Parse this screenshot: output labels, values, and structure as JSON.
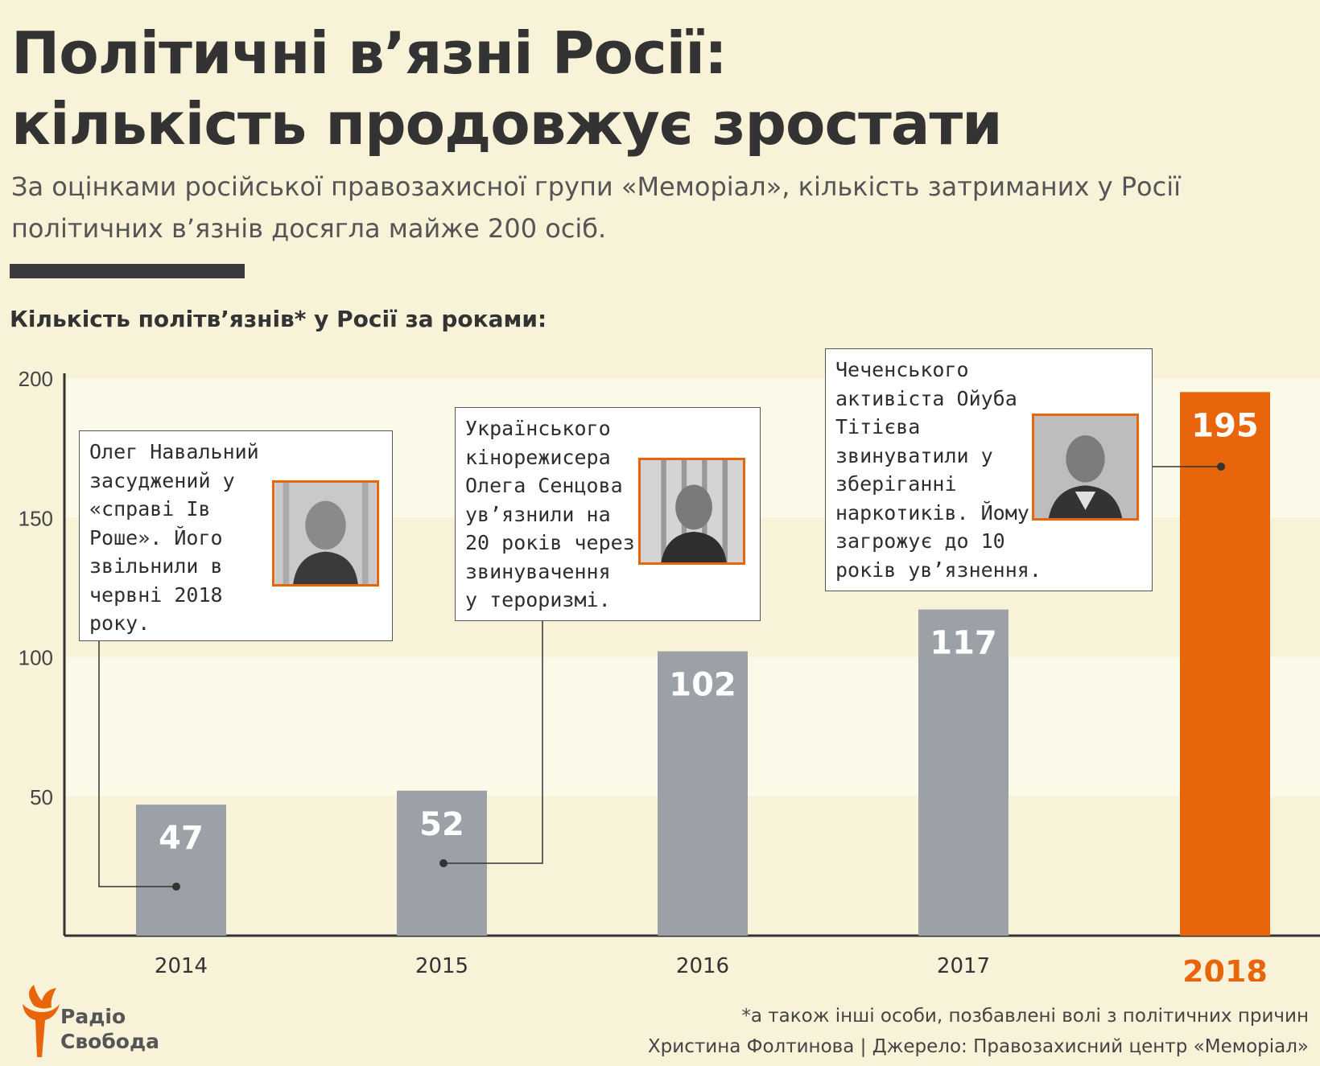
{
  "title_line1": "Політичні в’язні Росії:",
  "title_line2": "кількість продовжує зростати",
  "subtitle_line1": "За оцінками російської правозахисної групи «Меморіал», кількість затриманих у Росії",
  "subtitle_line2": "політичних в’язнів досягла майже 200 осіб.",
  "chart_data": {
    "type": "bar",
    "title": "Кількість політв’язнів* у Росії за роками:",
    "categories": [
      "2014",
      "2015",
      "2016",
      "2017",
      "2018"
    ],
    "values": [
      47,
      52,
      102,
      117,
      195
    ],
    "ylim": [
      0,
      200
    ],
    "yticks": [
      50,
      100,
      150,
      200
    ],
    "bar_color": "#9ba1a6",
    "highlight_color": "#e8650c",
    "highlight_index": 4,
    "grid_band_color": "#fbf9e8"
  },
  "callouts": [
    {
      "lines": [
        "Олег Навальний",
        "засуджений у",
        "«справі Ів",
        "Роше». Його",
        "звільнили в",
        "червні 2018",
        "року."
      ],
      "bar_index": 0,
      "photo": "portrait-icon"
    },
    {
      "lines": [
        "Українського",
        "кінорежисера",
        "Олега Сенцова",
        "ув’язнили на",
        "20 років через",
        "звинувачення",
        "у тероризмі."
      ],
      "bar_index": 1,
      "photo": "portrait-icon"
    },
    {
      "lines": [
        "Чеченського",
        "активіста Ойуба",
        "Тітієва",
        "звинуватили у",
        "зберіганні",
        "наркотиків. Йому",
        "загрожує до 10",
        "років ув’язнення."
      ],
      "bar_index": 4,
      "photo": "portrait-icon"
    }
  ],
  "logo": {
    "line1": "Радіо",
    "line2": "Свобода",
    "color": "#e8650c"
  },
  "footnote": "*а також інші особи, позбавлені волі з політичних причин",
  "credits": "Христина Фолтинова | Джерело: Правозахисний центр «Меморіал»"
}
